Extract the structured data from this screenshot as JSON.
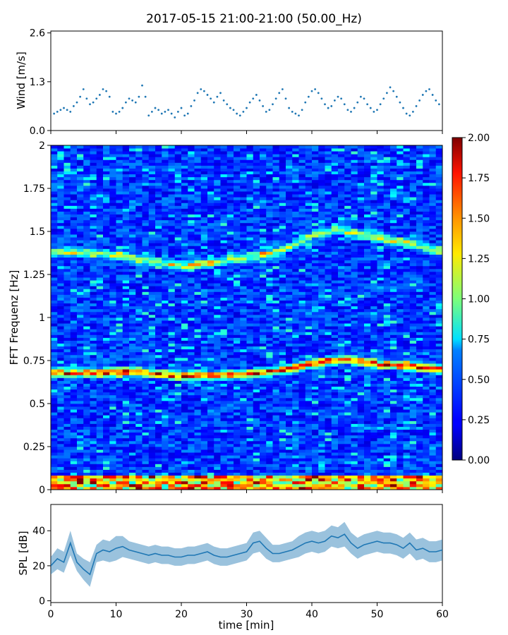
{
  "figure": {
    "title": "2017-05-15 21:00-21:00 (50.00_Hz)"
  },
  "chart_data": [
    {
      "type": "scatter",
      "name": "wind",
      "ylabel": "Wind [m/s]",
      "xlim": [
        0,
        60
      ],
      "ylim": [
        0,
        2.65
      ],
      "y_ticks": [
        0.0,
        1.3,
        2.6
      ],
      "y_tick_labels": [
        "0.0",
        "1.3",
        "2.6"
      ],
      "x_ticks": [
        0,
        10,
        20,
        30,
        40,
        50,
        60
      ],
      "color": "#1f77b4",
      "x": [
        0.5,
        1.0,
        1.5,
        2.0,
        2.5,
        3.0,
        3.5,
        4.0,
        4.5,
        5.0,
        5.5,
        6.0,
        6.5,
        7.0,
        7.5,
        8.0,
        8.5,
        9.0,
        9.5,
        10.0,
        10.5,
        11.0,
        11.5,
        12.0,
        12.5,
        13.0,
        13.5,
        14.0,
        14.5,
        15.0,
        15.5,
        16.0,
        16.5,
        17.0,
        17.5,
        18.0,
        18.5,
        19.0,
        19.5,
        20.0,
        20.5,
        21.0,
        21.5,
        22.0,
        22.5,
        23.0,
        23.5,
        24.0,
        24.5,
        25.0,
        25.5,
        26.0,
        26.5,
        27.0,
        27.5,
        28.0,
        28.5,
        29.0,
        29.5,
        30.0,
        30.5,
        31.0,
        31.5,
        32.0,
        32.5,
        33.0,
        33.5,
        34.0,
        34.5,
        35.0,
        35.5,
        36.0,
        36.5,
        37.0,
        37.5,
        38.0,
        38.5,
        39.0,
        39.5,
        40.0,
        40.5,
        41.0,
        41.5,
        42.0,
        42.5,
        43.0,
        43.5,
        44.0,
        44.5,
        45.0,
        45.5,
        46.0,
        46.5,
        47.0,
        47.5,
        48.0,
        48.5,
        49.0,
        49.5,
        50.0,
        50.5,
        51.0,
        51.5,
        52.0,
        52.5,
        53.0,
        53.5,
        54.0,
        54.5,
        55.0,
        55.5,
        56.0,
        56.5,
        57.0,
        57.5,
        58.0,
        58.5,
        59.0,
        59.5
      ],
      "y": [
        0.45,
        0.5,
        0.55,
        0.6,
        0.55,
        0.5,
        0.65,
        0.75,
        0.9,
        1.1,
        0.85,
        0.7,
        0.75,
        0.85,
        0.95,
        1.1,
        1.05,
        0.9,
        0.5,
        0.45,
        0.5,
        0.6,
        0.75,
        0.85,
        0.8,
        0.75,
        0.9,
        1.2,
        0.9,
        0.4,
        0.5,
        0.6,
        0.55,
        0.45,
        0.5,
        0.55,
        0.45,
        0.35,
        0.5,
        0.6,
        0.4,
        0.45,
        0.65,
        0.8,
        1.0,
        1.1,
        1.05,
        0.95,
        0.85,
        0.75,
        0.9,
        1.0,
        0.8,
        0.7,
        0.6,
        0.55,
        0.45,
        0.4,
        0.5,
        0.6,
        0.75,
        0.85,
        0.95,
        0.8,
        0.65,
        0.5,
        0.55,
        0.7,
        0.85,
        1.0,
        1.1,
        0.85,
        0.6,
        0.5,
        0.45,
        0.4,
        0.55,
        0.75,
        0.9,
        1.05,
        1.1,
        1.0,
        0.85,
        0.7,
        0.6,
        0.65,
        0.8,
        0.9,
        0.85,
        0.7,
        0.55,
        0.5,
        0.6,
        0.75,
        0.9,
        0.85,
        0.7,
        0.6,
        0.5,
        0.55,
        0.7,
        0.85,
        1.0,
        1.15,
        1.05,
        0.9,
        0.75,
        0.6,
        0.45,
        0.4,
        0.5,
        0.65,
        0.8,
        0.95,
        1.05,
        1.1,
        0.95,
        0.8,
        0.7
      ]
    },
    {
      "type": "heatmap",
      "name": "spectrogram",
      "ylabel": "FFT Frequenz [Hz]",
      "xlim": [
        0,
        60
      ],
      "ylim": [
        0,
        2
      ],
      "y_ticks": [
        0,
        0.25,
        0.5,
        0.75,
        1,
        1.25,
        1.5,
        1.75,
        2
      ],
      "y_tick_labels": [
        "0",
        "0.25",
        "0.5",
        "0.75",
        "1",
        "1.25",
        "1.5",
        "1.75",
        "2"
      ],
      "x_ticks": [
        0,
        10,
        20,
        30,
        40,
        50,
        60
      ],
      "colormap": "jet",
      "vmin": 0.0,
      "vmax": 2.0,
      "colorbar_ticks": [
        0.0,
        0.25,
        0.5,
        0.75,
        1.0,
        1.25,
        1.5,
        1.75,
        2.0
      ],
      "colorbar_tick_labels": [
        "0.00",
        "0.25",
        "0.50",
        "0.75",
        "1.00",
        "1.25",
        "1.50",
        "1.75",
        "2.00"
      ],
      "ridges": [
        {
          "points": [
            [
              0,
              0.68
            ],
            [
              8,
              0.68
            ],
            [
              12,
              0.69
            ],
            [
              20,
              0.66
            ],
            [
              30,
              0.67
            ],
            [
              36,
              0.7
            ],
            [
              40,
              0.73
            ],
            [
              45,
              0.76
            ],
            [
              50,
              0.73
            ],
            [
              55,
              0.72
            ],
            [
              60,
              0.7
            ]
          ],
          "value": 1.6
        },
        {
          "points": [
            [
              0,
              1.38
            ],
            [
              5,
              1.38
            ],
            [
              10,
              1.36
            ],
            [
              15,
              1.33
            ],
            [
              20,
              1.3
            ],
            [
              25,
              1.32
            ],
            [
              30,
              1.35
            ],
            [
              35,
              1.38
            ],
            [
              40,
              1.48
            ],
            [
              44,
              1.51
            ],
            [
              50,
              1.47
            ],
            [
              55,
              1.43
            ],
            [
              60,
              1.38
            ]
          ],
          "value": 1.0
        }
      ]
    },
    {
      "type": "line",
      "name": "spl",
      "ylabel": "SPL [dB]",
      "xlabel": "time [min]",
      "xlim": [
        0,
        60
      ],
      "ylim": [
        -1,
        55
      ],
      "y_ticks": [
        0,
        20,
        40
      ],
      "y_tick_labels": [
        "0",
        "20",
        "40"
      ],
      "x_ticks": [
        0,
        10,
        20,
        30,
        40,
        50,
        60
      ],
      "x_tick_labels": [
        "0",
        "10",
        "20",
        "30",
        "40",
        "50",
        "60"
      ],
      "color": "#1f77b4",
      "x": [
        0,
        1,
        2,
        3,
        4,
        5,
        6,
        7,
        8,
        9,
        10,
        11,
        12,
        13,
        14,
        15,
        16,
        17,
        18,
        19,
        20,
        21,
        22,
        23,
        24,
        25,
        26,
        27,
        28,
        29,
        30,
        31,
        32,
        33,
        34,
        35,
        36,
        37,
        38,
        39,
        40,
        41,
        42,
        43,
        44,
        45,
        46,
        47,
        48,
        49,
        50,
        51,
        52,
        53,
        54,
        55,
        56,
        57,
        58,
        59,
        60
      ],
      "y": [
        20,
        24,
        22,
        33,
        22,
        18,
        15,
        27,
        29,
        28,
        30,
        31,
        29,
        28,
        27,
        26,
        27,
        26,
        26,
        25,
        25,
        26,
        26,
        27,
        28,
        26,
        25,
        25,
        26,
        27,
        28,
        33,
        34,
        30,
        27,
        27,
        28,
        29,
        31,
        33,
        34,
        33,
        34,
        37,
        36,
        38,
        33,
        30,
        32,
        33,
        34,
        33,
        33,
        32,
        30,
        33,
        29,
        30,
        28,
        28,
        29
      ],
      "band": [
        5,
        6,
        6,
        7,
        5,
        6,
        7,
        5,
        6,
        6,
        7,
        6,
        5,
        5,
        5,
        5,
        5,
        5,
        5,
        5,
        5,
        5,
        5,
        5,
        5,
        5,
        5,
        5,
        5,
        5,
        5,
        6,
        6,
        6,
        5,
        5,
        5,
        5,
        6,
        6,
        6,
        6,
        6,
        6,
        6,
        7,
        6,
        6,
        6,
        6,
        6,
        6,
        6,
        6,
        6,
        6,
        6,
        6,
        6,
        6,
        6
      ]
    }
  ]
}
